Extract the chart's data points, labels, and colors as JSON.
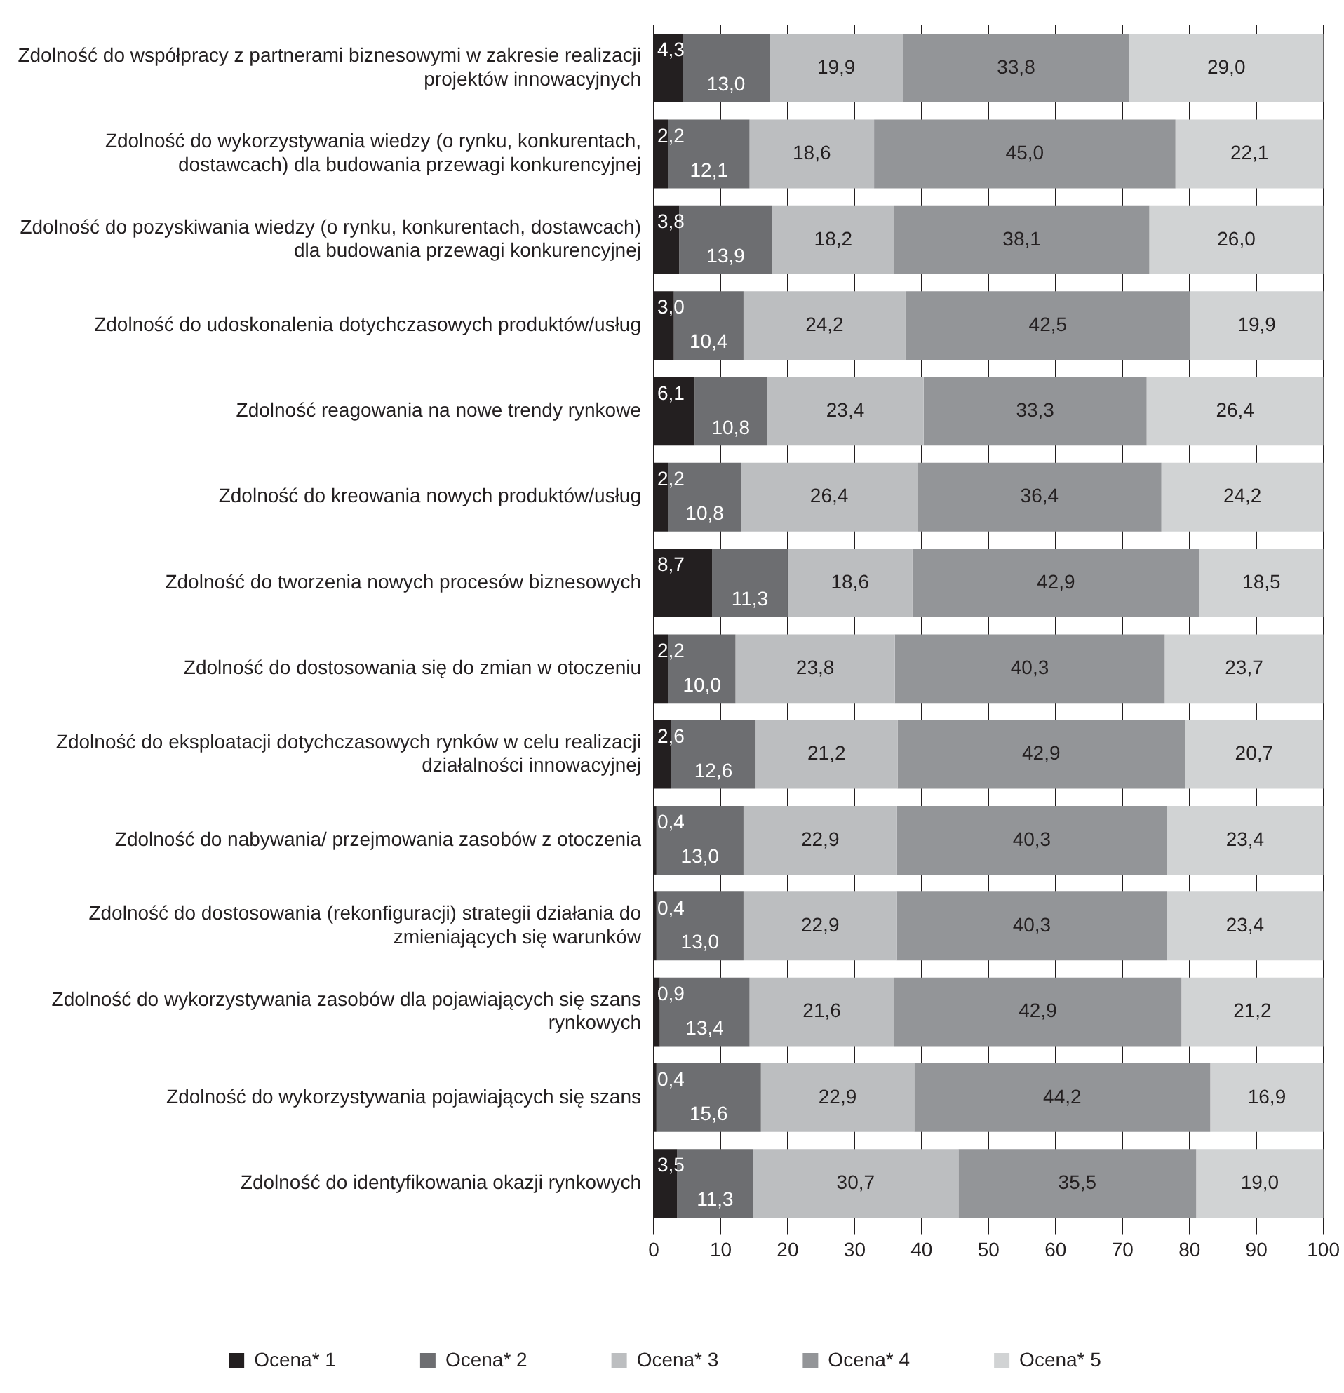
{
  "chart_data": {
    "type": "bar",
    "orientation": "horizontal",
    "stacked": true,
    "grid": "x",
    "legend": "bottom",
    "categories": [
      "Zdolność do współpracy z partnerami biznesowymi w zakresie realizacji projektów innowacyjnych",
      "Zdolność do wykorzystywania wiedzy (o rynku, konkurentach, dostawcach) dla budowania przewagi konkurencyjnej",
      "Zdolność do pozyskiwania wiedzy (o rynku, konkurentach, dostawcach) dla budowania przewagi konkurencyjnej",
      "Zdolność do udoskonalenia dotychczasowych produktów/usług",
      "Zdolność reagowania na nowe trendy rynkowe",
      "Zdolność do kreowania nowych produktów/usług",
      "Zdolność do tworzenia nowych procesów biznesowych",
      "Zdolność do dostosowania się do zmian w otoczeniu",
      "Zdolność do eksploatacji dotychczasowych rynków w celu realizacji działalności innowacyjnej",
      "Zdolność do nabywania/ przejmowania zasobów z otoczenia",
      "Zdolność do dostosowania (rekonfiguracji) strategii działania do zmieniających się warunków",
      "Zdolność do wykorzystywania zasobów dla pojawiających się szans rynkowych",
      "Zdolność do wykorzystywania pojawiających się szans",
      "Zdolność do identyfikowania okazji rynkowych"
    ],
    "series": [
      {
        "name": "Ocena* 1",
        "color": "#231f20",
        "values": [
          4.3,
          2.2,
          3.8,
          3.0,
          6.1,
          2.2,
          8.7,
          2.2,
          2.6,
          0.4,
          0.4,
          0.9,
          0.4,
          3.5
        ],
        "value_labels": [
          "4,3",
          "2,2",
          "3,8",
          "3,0",
          "6,1",
          "2,2",
          "8,7",
          "2,2",
          "2,6",
          "0,4",
          "0,4",
          "0,9",
          "0,4",
          "3,5"
        ]
      },
      {
        "name": "Ocena* 2",
        "color": "#6d6e71",
        "values": [
          13.0,
          12.1,
          13.9,
          10.4,
          10.8,
          10.8,
          11.3,
          10.0,
          12.6,
          13.0,
          13.0,
          13.4,
          15.6,
          11.3
        ],
        "value_labels": [
          "13,0",
          "12,1",
          "13,9",
          "10,4",
          "10,8",
          "10,8",
          "11,3",
          "10,0",
          "12,6",
          "13,0",
          "13,0",
          "13,4",
          "15,6",
          "11,3"
        ]
      },
      {
        "name": "Ocena* 3",
        "color": "#bcbec0",
        "values": [
          19.9,
          18.6,
          18.2,
          24.2,
          23.4,
          26.4,
          18.6,
          23.8,
          21.2,
          22.9,
          22.9,
          21.6,
          22.9,
          30.7
        ],
        "value_labels": [
          "19,9",
          "18,6",
          "18,2",
          "24,2",
          "23,4",
          "26,4",
          "18,6",
          "23,8",
          "21,2",
          "22,9",
          "22,9",
          "21,6",
          "22,9",
          "30,7"
        ]
      },
      {
        "name": "Ocena* 4",
        "color": "#939598",
        "values": [
          33.8,
          45.0,
          38.1,
          42.5,
          33.3,
          36.4,
          42.9,
          40.3,
          42.9,
          40.3,
          40.3,
          42.9,
          44.2,
          35.5
        ],
        "value_labels": [
          "33,8",
          "45,0",
          "38,1",
          "42,5",
          "33,3",
          "36,4",
          "42,9",
          "40,3",
          "42,9",
          "40,3",
          "40,3",
          "42,9",
          "44,2",
          "35,5"
        ]
      },
      {
        "name": "Ocena* 5",
        "color": "#d1d3d4",
        "values": [
          29.0,
          22.1,
          26.0,
          19.9,
          26.4,
          24.2,
          18.5,
          23.7,
          20.7,
          23.4,
          23.4,
          21.2,
          16.9,
          19.0
        ],
        "value_labels": [
          "29,0",
          "22,1",
          "26,0",
          "19,9",
          "26,4",
          "24,2",
          "18,5",
          "23,7",
          "20,7",
          "23,4",
          "23,4",
          "21,2",
          "16,9",
          "19,0"
        ]
      }
    ],
    "xlim": [
      0,
      100
    ],
    "xticks": [
      0,
      10,
      20,
      30,
      40,
      50,
      60,
      70,
      80,
      90,
      100
    ]
  }
}
